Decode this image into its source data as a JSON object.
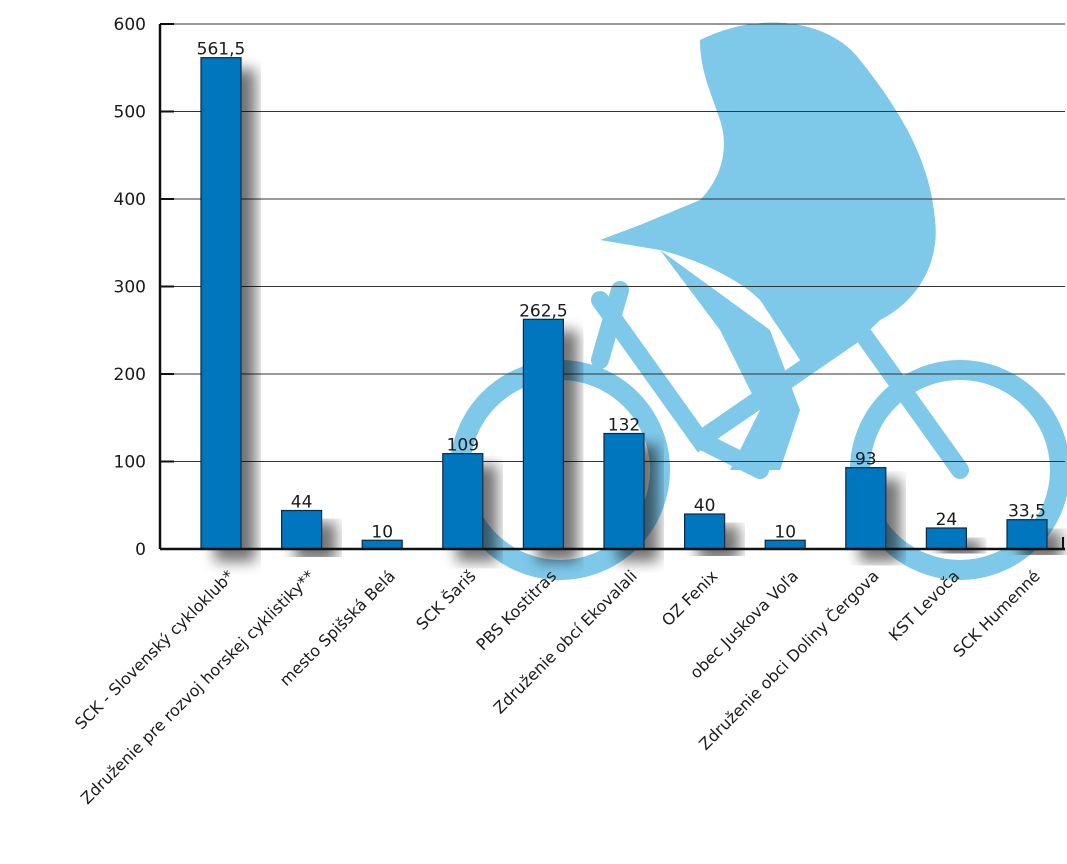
{
  "chart_data": {
    "type": "bar",
    "title": "",
    "xlabel": "",
    "ylabel": "",
    "ylim": [
      0,
      600
    ],
    "yticks": [
      0,
      100,
      200,
      300,
      400,
      500,
      600
    ],
    "grid": true,
    "bar_color": "#0076bf",
    "watermark_color": "#7ec8ea",
    "categories": [
      "SCK - Slovenský cykloklub*",
      "Združenie pre rozvoj horskej cyklistiky**",
      "mesto Spišská Belá",
      "SCK Šariš",
      "PBS Kostitras",
      "Združenie obcí Ekovalali",
      "OZ Fenix",
      "obec Juskova Voľa",
      "Združenie obci Doliny Čergova",
      "KST Levoča",
      "SCK Humenné"
    ],
    "values": [
      561.5,
      44,
      10,
      109,
      262.5,
      132,
      40,
      10,
      93,
      24,
      33.5
    ],
    "value_labels": [
      "561,5",
      "44",
      "10",
      "109",
      "262,5",
      "132",
      "40",
      "10",
      "93",
      "24",
      "33,5"
    ]
  },
  "footer": {
    "text": "... ... ... ... ... ..."
  }
}
